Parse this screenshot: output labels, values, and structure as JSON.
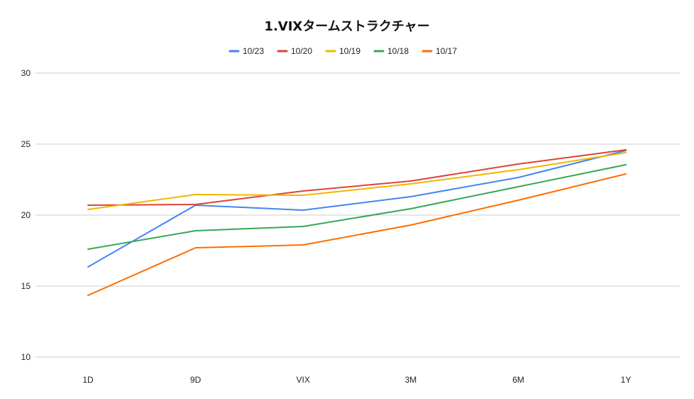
{
  "chart_data": {
    "type": "line",
    "title": "1.VIXタームストラクチャー",
    "xlabel": "",
    "ylabel": "",
    "categories": [
      "1D",
      "9D",
      "VIX",
      "3M",
      "6M",
      "1Y"
    ],
    "ylim": [
      10,
      30
    ],
    "yticks": [
      10,
      15,
      20,
      25,
      30
    ],
    "grid": true,
    "legend_position": "top",
    "series": [
      {
        "name": "10/23",
        "color": "#4285f4",
        "values": [
          16.35,
          20.7,
          20.35,
          21.3,
          22.65,
          24.55
        ]
      },
      {
        "name": "10/20",
        "color": "#db4437",
        "values": [
          20.7,
          20.75,
          21.7,
          22.4,
          23.6,
          24.6
        ]
      },
      {
        "name": "10/19",
        "color": "#f4b400",
        "values": [
          20.4,
          21.45,
          21.4,
          22.2,
          23.2,
          24.4
        ]
      },
      {
        "name": "10/18",
        "color": "#34a853",
        "values": [
          17.6,
          18.9,
          19.2,
          20.45,
          22.0,
          23.55
        ]
      },
      {
        "name": "10/17",
        "color": "#ff6d01",
        "values": [
          14.35,
          17.7,
          17.9,
          19.3,
          21.05,
          22.9
        ]
      }
    ]
  }
}
